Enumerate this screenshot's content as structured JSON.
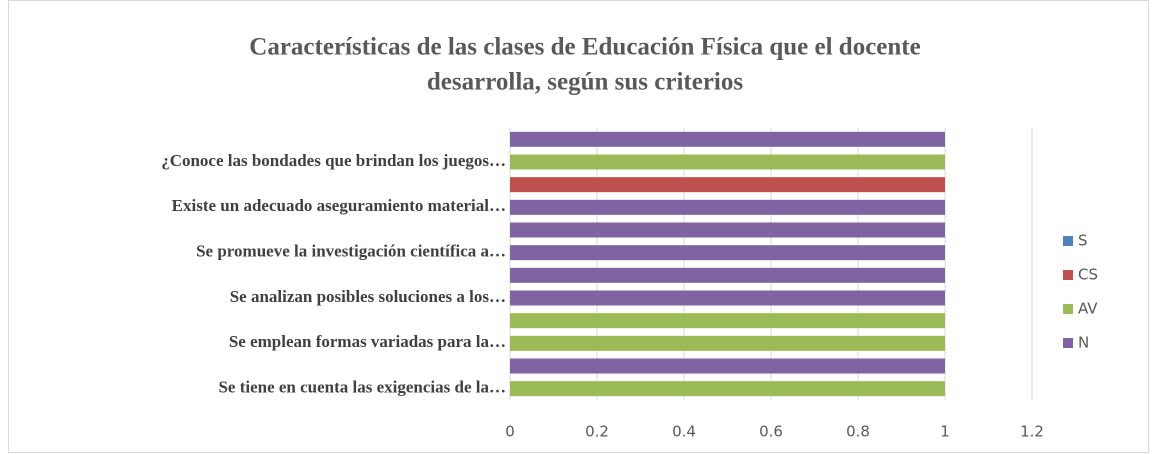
{
  "chart_data": {
    "type": "stacked-barh",
    "title": [
      "Características de las clases de Educación Física que el docente",
      "desarrolla, según sus criterios"
    ],
    "categories": [
      "Se tiene en cuenta las exigencias de la…",
      null,
      "Se emplean formas variadas para la…",
      null,
      "Se analizan posibles soluciones a los…",
      null,
      "Se promueve la investigación científica a…",
      null,
      "Existe un adecuado aseguramiento material…",
      null,
      "¿Conoce las bondades que brindan los juegos…",
      null
    ],
    "series": [
      {
        "name": "S",
        "color": "#4f81bd",
        "values": [
          0,
          0,
          0,
          0,
          0,
          0,
          0,
          0,
          0,
          0,
          0,
          0
        ]
      },
      {
        "name": "CS",
        "color": "#c0504d",
        "values": [
          0,
          0,
          0,
          0,
          0,
          0,
          0,
          0,
          0,
          1,
          0,
          0
        ]
      },
      {
        "name": "AV",
        "color": "#9bbb59",
        "values": [
          1,
          0,
          1,
          1,
          0,
          0,
          0,
          0,
          0,
          0,
          1,
          0
        ]
      },
      {
        "name": "N",
        "color": "#8064a2",
        "values": [
          0,
          1,
          0,
          0,
          1,
          1,
          1,
          1,
          1,
          0,
          0,
          1
        ]
      }
    ],
    "xlim": [
      0,
      1.2
    ],
    "xticks": [
      0,
      0.2,
      0.4,
      0.6,
      0.8,
      1,
      1.2
    ],
    "grid": true,
    "legend": "right"
  }
}
